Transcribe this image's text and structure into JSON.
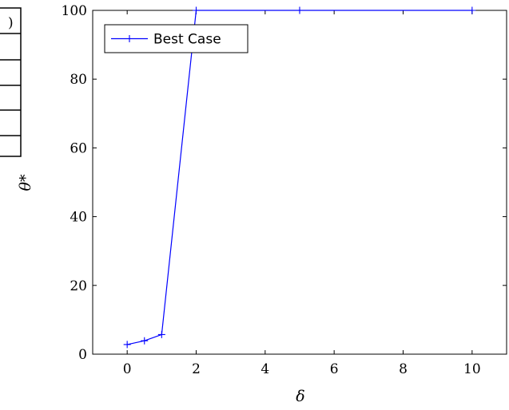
{
  "chart_data": {
    "type": "line",
    "title": "",
    "xlabel": "δ",
    "ylabel": "θ*",
    "xlim": [
      -1,
      11
    ],
    "ylim": [
      0,
      100
    ],
    "xticks": [
      0,
      2,
      4,
      6,
      8,
      10
    ],
    "yticks": [
      0,
      20,
      40,
      60,
      80,
      100
    ],
    "grid": false,
    "legend_position": "top-left",
    "series": [
      {
        "name": "Best Case",
        "color": "#0000ff",
        "marker": "plus",
        "x": [
          0,
          0.5,
          1,
          2,
          5,
          10
        ],
        "y": [
          2.8,
          3.9,
          5.7,
          100,
          100,
          100
        ]
      }
    ]
  },
  "side_table": {
    "visible_fragment": ")"
  }
}
